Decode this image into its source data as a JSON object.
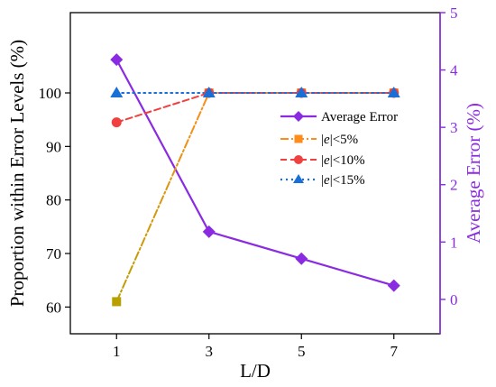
{
  "chart_data": {
    "type": "line",
    "x": [
      1,
      3,
      5,
      7
    ],
    "x_ticks": [
      "1",
      "3",
      "5",
      "7"
    ],
    "xlabel": "L/D",
    "xlim": [
      0.0,
      8.0
    ],
    "ylabel_left": "Proportion within Error Levels (%)",
    "ylim_left": [
      55,
      115
    ],
    "yticks_left": [
      60,
      70,
      80,
      90,
      100
    ],
    "ylabel_right": "Average Error (%)",
    "ylim_right": [
      -0.6,
      5.0
    ],
    "yticks_right": [
      0,
      1,
      2,
      3,
      4,
      5
    ],
    "right_axis_color": "#8a2be2",
    "legend_position": "center-right",
    "series": [
      {
        "name": "Average Error",
        "axis": "right",
        "values": [
          4.18,
          1.18,
          0.71,
          0.24
        ],
        "color": "#8a2be2",
        "marker": "diamond",
        "line_style": "solid"
      },
      {
        "name": "|e|<5%",
        "name_parts": [
          "|",
          "e",
          "|<5%"
        ],
        "axis": "left",
        "values": [
          61,
          100,
          100,
          100
        ],
        "color": "#ff8c1a",
        "color_start": "#b8a000",
        "marker": "square",
        "line_style": "dashdot"
      },
      {
        "name": "|e|<10%",
        "name_parts": [
          "|",
          "e",
          "|<10%"
        ],
        "axis": "left",
        "values": [
          94.5,
          100,
          100,
          100
        ],
        "color": "#f04040",
        "marker": "circle",
        "line_style": "dashed"
      },
      {
        "name": "|e|<15%",
        "name_parts": [
          "|",
          "e",
          "|<15%"
        ],
        "axis": "left",
        "values": [
          100,
          100,
          100,
          100
        ],
        "color": "#1a6fd6",
        "marker": "triangle",
        "line_style": "dotted"
      }
    ]
  }
}
